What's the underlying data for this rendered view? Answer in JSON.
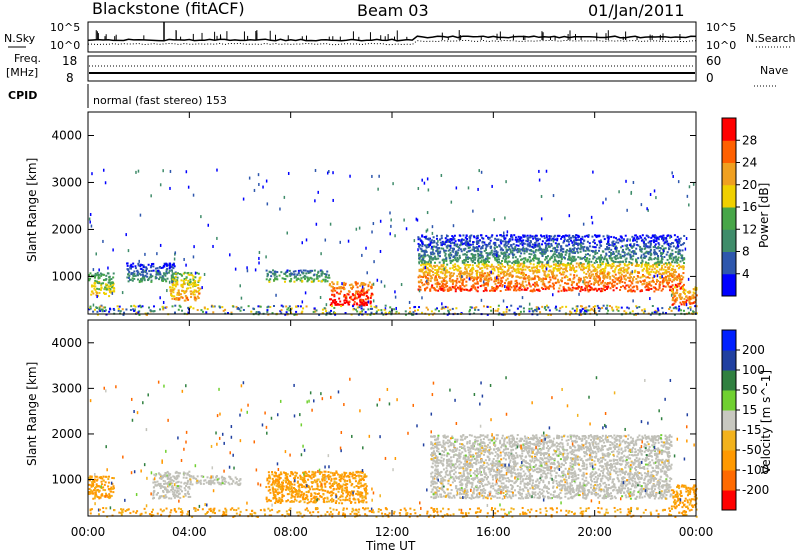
{
  "header": {
    "station": "Blackstone (fitACF)",
    "beam": "Beam 03",
    "date": "01/Jan/2011"
  },
  "strip": {
    "nsky_label": "N.Sky",
    "nsky_ticks": [
      "10^5",
      "10^0"
    ],
    "nsearch_label": "N.Search",
    "nsearch_ticks": [
      "10^5",
      "10^0"
    ],
    "freq_label": "Freq.",
    "freq_unit": "[MHz]",
    "freq_ticks": [
      "18",
      "8"
    ],
    "nave_label": "Nave",
    "nave_ticks": [
      "60",
      "0"
    ],
    "cpid_label": "CPID",
    "cpid_text": "normal (fast stereo) 153"
  },
  "colors": {
    "power_scale": [
      "#0000ff",
      "#2e57ad",
      "#3f8c6a",
      "#47a648",
      "#f0d000",
      "#f0a020",
      "#ff6000",
      "#ff0000"
    ],
    "velocity_scale": [
      "#ff0000",
      "#ff6a00",
      "#ff9900",
      "#f2b21c",
      "#c8c8c0",
      "#70d030",
      "#308040",
      "#2040a0",
      "#0020ff"
    ],
    "ground_scatter": "#c0c0b8"
  },
  "chart_data": [
    {
      "type": "heatmap",
      "name": "power",
      "xlabel": "",
      "ylabel": "Slant Range [km]",
      "yticks": [
        "1000",
        "2000",
        "3000",
        "4000"
      ],
      "ylim": [
        200,
        4500
      ],
      "xlim": [
        0,
        24
      ],
      "colorbar_label": "Power [dB]",
      "colorbar_ticks": [
        "4",
        "8",
        "12",
        "16",
        "20",
        "24",
        "28"
      ],
      "features": [
        {
          "t_start": 0.0,
          "t_end": 1.0,
          "range_low": 600,
          "range_high": 1100,
          "level": 16
        },
        {
          "t_start": 1.5,
          "t_end": 3.5,
          "range_low": 900,
          "range_high": 1300,
          "level": 8
        },
        {
          "t_start": 3.2,
          "t_end": 4.4,
          "range_low": 500,
          "range_high": 1100,
          "level": 20
        },
        {
          "t_start": 7.0,
          "t_end": 9.5,
          "range_low": 900,
          "range_high": 1150,
          "level": 12
        },
        {
          "t_start": 9.5,
          "t_end": 11.2,
          "range_low": 400,
          "range_high": 900,
          "level": 28
        },
        {
          "t_start": 13.0,
          "t_end": 23.5,
          "range_low": 700,
          "range_high": 1300,
          "level": 24
        },
        {
          "t_start": 13.0,
          "t_end": 23.5,
          "range_low": 1300,
          "range_high": 1900,
          "level": 8
        },
        {
          "t_start": 23.0,
          "t_end": 24.0,
          "range_low": 400,
          "range_high": 800,
          "level": 24
        }
      ]
    },
    {
      "type": "heatmap",
      "name": "velocity",
      "xlabel": "Time UT",
      "ylabel": "Slant Range [km]",
      "yticks": [
        "1000",
        "2000",
        "3000",
        "4000"
      ],
      "xticks": [
        "00:00",
        "04:00",
        "08:00",
        "12:00",
        "16:00",
        "20:00",
        "00:00"
      ],
      "xlim": [
        0,
        24
      ],
      "ylim": [
        200,
        4500
      ],
      "colorbar_label": "Velocity [m s^-1]",
      "colorbar_ticks": [
        "200",
        "100",
        "50",
        "15",
        "-15",
        "-50",
        "-100",
        "-200"
      ],
      "features": [
        {
          "t_start": 0.0,
          "t_end": 1.0,
          "range_low": 600,
          "range_high": 1100,
          "velocity": -60
        },
        {
          "t_start": 2.5,
          "t_end": 4.0,
          "range_low": 600,
          "range_high": 1200,
          "velocity": 0
        },
        {
          "t_start": 4.0,
          "t_end": 6.0,
          "range_low": 900,
          "range_high": 1100,
          "velocity": 0
        },
        {
          "t_start": 7.0,
          "t_end": 11.0,
          "range_low": 500,
          "range_high": 1200,
          "velocity": -60
        },
        {
          "t_start": 13.5,
          "t_end": 23.0,
          "range_low": 600,
          "range_high": 2000,
          "velocity": 0
        },
        {
          "t_start": 23.0,
          "t_end": 24.0,
          "range_low": 400,
          "range_high": 900,
          "velocity": -60
        }
      ]
    }
  ]
}
